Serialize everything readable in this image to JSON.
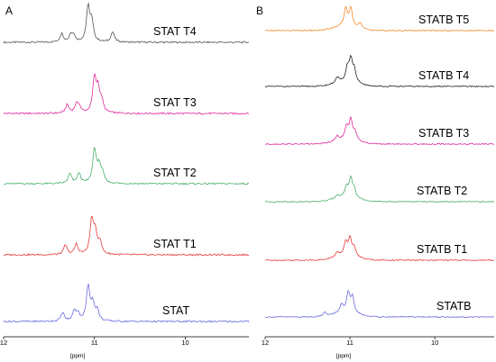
{
  "chart_data": [
    {
      "panel": "A",
      "type": "line",
      "xlabel": "[ppm]",
      "x_reversed": true,
      "xlim": [
        12,
        9.3
      ],
      "xticks": [
        12,
        11,
        10
      ],
      "y_unit": "relative intensity (stacked, offset)",
      "series": [
        {
          "name": "STAT T4",
          "color": "#555555",
          "peaks": [
            [
              11.36,
              0.25
            ],
            [
              11.26,
              0.2
            ],
            [
              11.23,
              0.18
            ],
            [
              11.07,
              1.0
            ],
            [
              11.03,
              0.55
            ],
            [
              10.8,
              0.3
            ]
          ]
        },
        {
          "name": "STAT T3",
          "color": "#e0299a",
          "peaks": [
            [
              11.3,
              0.25
            ],
            [
              11.2,
              0.22
            ],
            [
              11.17,
              0.2
            ],
            [
              11.0,
              1.0
            ],
            [
              10.96,
              0.65
            ],
            [
              10.92,
              0.3
            ]
          ]
        },
        {
          "name": "STAT T2",
          "color": "#4caf6d",
          "peaks": [
            [
              11.27,
              0.28
            ],
            [
              11.17,
              0.3
            ],
            [
              11.0,
              1.0
            ],
            [
              10.95,
              0.5
            ],
            [
              10.91,
              0.25
            ]
          ]
        },
        {
          "name": "STAT T1",
          "color": "#e83a3a",
          "peaks": [
            [
              11.32,
              0.28
            ],
            [
              11.2,
              0.3
            ],
            [
              11.03,
              1.0
            ],
            [
              10.99,
              0.6
            ],
            [
              10.94,
              0.35
            ]
          ]
        },
        {
          "name": "STAT",
          "color": "#6a6ae0",
          "peaks": [
            [
              11.35,
              0.25
            ],
            [
              11.22,
              0.3
            ],
            [
              11.18,
              0.2
            ],
            [
              11.07,
              1.0
            ],
            [
              11.02,
              0.5
            ],
            [
              10.97,
              0.3
            ]
          ]
        }
      ]
    },
    {
      "panel": "B",
      "type": "line",
      "xlabel": "[ppm]",
      "x_reversed": true,
      "xlim": [
        12,
        9.3
      ],
      "xticks": [
        12,
        11,
        10
      ],
      "y_unit": "relative intensity (stacked, offset)",
      "series": [
        {
          "name": "STATB T5",
          "color": "#f58b2a",
          "peaks": [
            [
              11.05,
              0.8
            ],
            [
              10.99,
              0.85
            ],
            [
              10.88,
              0.25
            ]
          ]
        },
        {
          "name": "STATB T4",
          "color": "#222222",
          "peaks": [
            [
              11.15,
              0.25
            ],
            [
              11.03,
              0.6
            ],
            [
              10.99,
              1.0
            ],
            [
              10.95,
              0.55
            ]
          ]
        },
        {
          "name": "STATB T3",
          "color": "#e0299a",
          "peaks": [
            [
              11.15,
              0.2
            ],
            [
              11.04,
              0.55
            ],
            [
              10.99,
              0.9
            ],
            [
              10.94,
              0.4
            ]
          ]
        },
        {
          "name": "STATB T2",
          "color": "#4caf6d",
          "peaks": [
            [
              11.15,
              0.15
            ],
            [
              11.04,
              0.45
            ],
            [
              10.99,
              0.85
            ],
            [
              10.95,
              0.35
            ]
          ]
        },
        {
          "name": "STATB T1",
          "color": "#e83a3a",
          "peaks": [
            [
              11.15,
              0.2
            ],
            [
              11.05,
              0.6
            ],
            [
              11.0,
              0.8
            ],
            [
              10.95,
              0.4
            ]
          ]
        },
        {
          "name": "STATB",
          "color": "#6a6ae0",
          "peaks": [
            [
              11.3,
              0.2
            ],
            [
              11.1,
              0.35
            ],
            [
              11.02,
              0.9
            ],
            [
              10.97,
              0.7
            ]
          ]
        }
      ]
    }
  ]
}
